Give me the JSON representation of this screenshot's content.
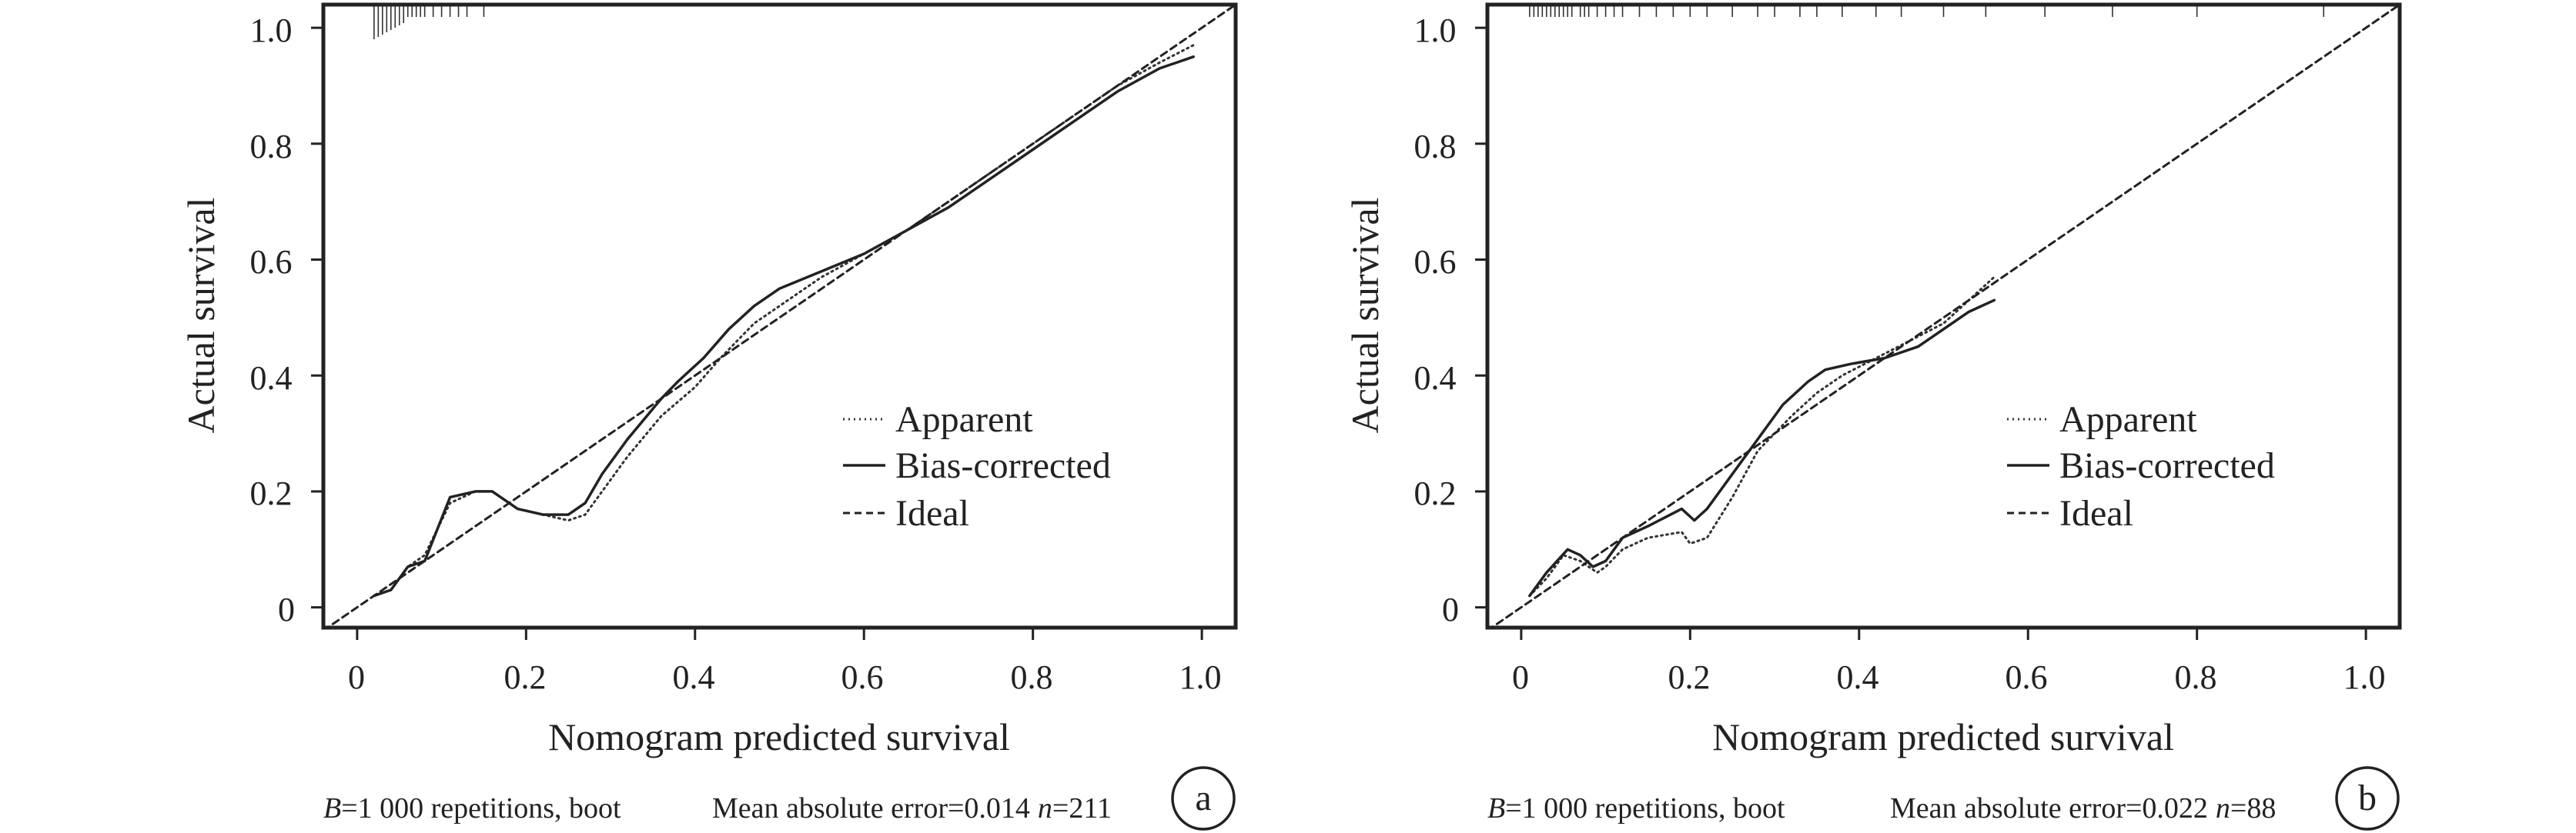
{
  "chart_data": [
    {
      "type": "line",
      "panel": "a",
      "xlabel": "Nomogram predicted survival",
      "ylabel": "Actual survival",
      "xlim": [
        -0.04,
        1.04
      ],
      "ylim": [
        -0.035,
        1.04
      ],
      "xticks": [
        {
          "value": 0,
          "label": "0"
        },
        {
          "value": 0.2,
          "label": "0.2"
        },
        {
          "value": 0.4,
          "label": "0.4"
        },
        {
          "value": 0.6,
          "label": "0.6"
        },
        {
          "value": 0.8,
          "label": "0.8"
        },
        {
          "value": 1.0,
          "label": "1.0"
        }
      ],
      "yticks": [
        {
          "value": 0,
          "label": "0"
        },
        {
          "value": 0.2,
          "label": "0.2"
        },
        {
          "value": 0.4,
          "label": "0.4"
        },
        {
          "value": 0.6,
          "label": "0.6"
        },
        {
          "value": 0.8,
          "label": "0.8"
        },
        {
          "value": 1.0,
          "label": "1.0"
        }
      ],
      "legend_position": "lower-right",
      "series": [
        {
          "name": "Apparent",
          "style": "dotted",
          "x": [
            0.02,
            0.04,
            0.06,
            0.08,
            0.11,
            0.14,
            0.16,
            0.19,
            0.22,
            0.25,
            0.27,
            0.29,
            0.32,
            0.36,
            0.4,
            0.43,
            0.47,
            0.5,
            0.55,
            0.6,
            0.65,
            0.7,
            0.75,
            0.8,
            0.85,
            0.9,
            0.95,
            0.99
          ],
          "y": [
            0.02,
            0.03,
            0.07,
            0.09,
            0.18,
            0.2,
            0.2,
            0.17,
            0.16,
            0.15,
            0.16,
            0.2,
            0.26,
            0.33,
            0.38,
            0.43,
            0.49,
            0.52,
            0.57,
            0.61,
            0.65,
            0.7,
            0.75,
            0.8,
            0.85,
            0.9,
            0.94,
            0.97
          ]
        },
        {
          "name": "Bias-corrected",
          "style": "solid",
          "x": [
            0.02,
            0.04,
            0.06,
            0.08,
            0.11,
            0.14,
            0.16,
            0.19,
            0.22,
            0.25,
            0.27,
            0.29,
            0.32,
            0.36,
            0.38,
            0.41,
            0.44,
            0.47,
            0.5,
            0.55,
            0.6,
            0.65,
            0.7,
            0.75,
            0.8,
            0.85,
            0.9,
            0.95,
            0.99
          ],
          "y": [
            0.02,
            0.03,
            0.07,
            0.08,
            0.19,
            0.2,
            0.2,
            0.17,
            0.16,
            0.16,
            0.18,
            0.23,
            0.29,
            0.36,
            0.39,
            0.43,
            0.48,
            0.52,
            0.55,
            0.58,
            0.61,
            0.65,
            0.69,
            0.74,
            0.79,
            0.84,
            0.89,
            0.93,
            0.95
          ]
        },
        {
          "name": "Ideal",
          "style": "dashed",
          "x": [
            -0.04,
            1.04
          ],
          "y": [
            -0.04,
            1.04
          ]
        }
      ],
      "rug": [
        0.02,
        0.025,
        0.03,
        0.035,
        0.04,
        0.045,
        0.05,
        0.055,
        0.06,
        0.065,
        0.07,
        0.075,
        0.08,
        0.09,
        0.1,
        0.11,
        0.12,
        0.13,
        0.15
      ],
      "caption_left_var": "B",
      "caption_left_text": "=1 000 repetitions, boot",
      "caption_right_text": "Mean absolute error=0.014",
      "caption_n_var": "n",
      "caption_n_text": "=211"
    },
    {
      "type": "line",
      "panel": "b",
      "xlabel": "Nomogram predicted survival",
      "ylabel": "Actual survival",
      "xlim": [
        -0.04,
        1.04
      ],
      "ylim": [
        -0.035,
        1.04
      ],
      "xticks": [
        {
          "value": 0,
          "label": "0"
        },
        {
          "value": 0.2,
          "label": "0.2"
        },
        {
          "value": 0.4,
          "label": "0.4"
        },
        {
          "value": 0.6,
          "label": "0.6"
        },
        {
          "value": 0.8,
          "label": "0.8"
        },
        {
          "value": 1.0,
          "label": "1.0"
        }
      ],
      "yticks": [
        {
          "value": 0,
          "label": "0"
        },
        {
          "value": 0.2,
          "label": "0.2"
        },
        {
          "value": 0.4,
          "label": "0.4"
        },
        {
          "value": 0.6,
          "label": "0.6"
        },
        {
          "value": 0.8,
          "label": "0.8"
        },
        {
          "value": 1.0,
          "label": "1.0"
        }
      ],
      "legend_position": "lower-right",
      "series": [
        {
          "name": "Apparent",
          "style": "dotted",
          "x": [
            0.01,
            0.03,
            0.05,
            0.07,
            0.09,
            0.1,
            0.12,
            0.15,
            0.19,
            0.2,
            0.22,
            0.25,
            0.28,
            0.32,
            0.35,
            0.38,
            0.42,
            0.46,
            0.5,
            0.53,
            0.56
          ],
          "y": [
            0.02,
            0.05,
            0.09,
            0.08,
            0.06,
            0.07,
            0.1,
            0.12,
            0.13,
            0.11,
            0.12,
            0.19,
            0.27,
            0.33,
            0.37,
            0.4,
            0.43,
            0.46,
            0.49,
            0.53,
            0.57
          ]
        },
        {
          "name": "Bias-corrected",
          "style": "solid",
          "x": [
            0.01,
            0.03,
            0.055,
            0.07,
            0.085,
            0.1,
            0.12,
            0.15,
            0.19,
            0.205,
            0.22,
            0.25,
            0.28,
            0.31,
            0.34,
            0.36,
            0.39,
            0.43,
            0.47,
            0.5,
            0.53,
            0.56
          ],
          "y": [
            0.02,
            0.06,
            0.1,
            0.09,
            0.07,
            0.08,
            0.12,
            0.14,
            0.17,
            0.15,
            0.17,
            0.23,
            0.29,
            0.35,
            0.39,
            0.41,
            0.42,
            0.43,
            0.45,
            0.48,
            0.51,
            0.53
          ]
        },
        {
          "name": "Ideal",
          "style": "dashed",
          "x": [
            -0.04,
            1.04
          ],
          "y": [
            -0.04,
            1.04
          ]
        }
      ],
      "rug": [
        0.01,
        0.015,
        0.02,
        0.025,
        0.03,
        0.035,
        0.04,
        0.045,
        0.05,
        0.055,
        0.06,
        0.07,
        0.075,
        0.08,
        0.09,
        0.1,
        0.11,
        0.12,
        0.14,
        0.16,
        0.18,
        0.2,
        0.22,
        0.25,
        0.28,
        0.3,
        0.33,
        0.35,
        0.38,
        0.42,
        0.45,
        0.5,
        0.55,
        0.62,
        0.7,
        0.8,
        0.95
      ],
      "caption_left_var": "B",
      "caption_left_text": "=1 000 repetitions, boot",
      "caption_right_text": "Mean absolute error=0.022",
      "caption_n_var": "n",
      "caption_n_text": "=88"
    }
  ]
}
